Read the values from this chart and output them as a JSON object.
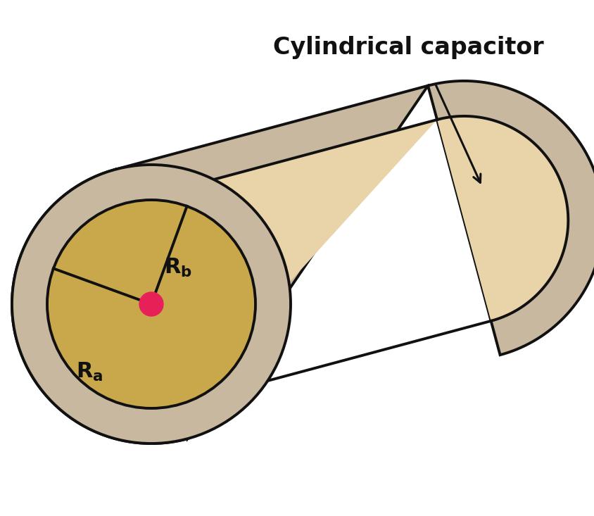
{
  "title": "Cylindrical capacitor",
  "title_fontsize": 24,
  "title_fontweight": "bold",
  "bg_color": "#ffffff",
  "outer_shell_color": "#c8b8a0",
  "inner_cylinder_color": "#e8d4a8",
  "inner_face_color": "#c8a84a",
  "dot_color": "#e8205a",
  "black": "#111111",
  "label_fontsize": 22,
  "arrow_lw": 2.2,
  "body_lw": 2.8
}
